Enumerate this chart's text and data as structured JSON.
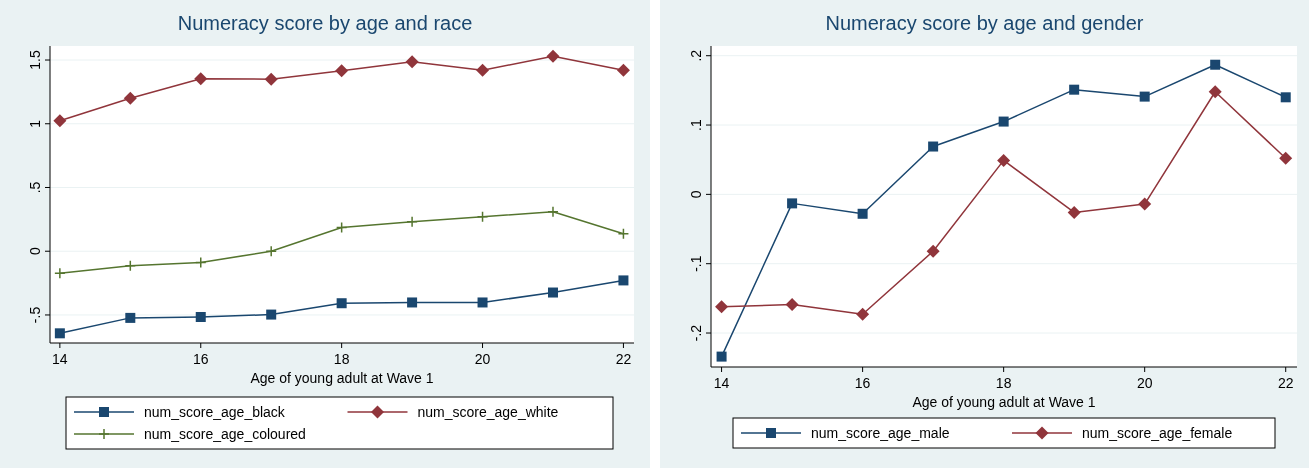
{
  "chart_data": [
    {
      "type": "line",
      "title": "Numeracy score by age and race",
      "xlabel": "Age of young adult at Wave 1",
      "x": [
        14,
        15,
        16,
        17,
        18,
        19,
        20,
        21,
        22
      ],
      "xlim": [
        13.86,
        22.15
      ],
      "xticks": [
        14,
        16,
        18,
        20,
        22
      ],
      "ylim": [
        -0.72,
        1.61
      ],
      "yticks": [
        {
          "value": -0.5,
          "label": "-.5"
        },
        0,
        {
          "value": 0.5,
          "label": ".5"
        },
        1,
        1.5
      ],
      "grid": "y",
      "legend": "bottom",
      "line_style": "solid",
      "series": [
        {
          "name": "num_score_age_black",
          "color": "#1a476f",
          "marker": "square",
          "values": [
            -0.644,
            -0.523,
            -0.516,
            -0.497,
            -0.408,
            -0.402,
            -0.402,
            -0.324,
            -0.229
          ]
        },
        {
          "name": "num_score_age_white",
          "color": "#90353b",
          "marker": "diamond",
          "values": [
            1.023,
            1.2,
            1.353,
            1.35,
            1.415,
            1.487,
            1.42,
            1.53,
            1.42
          ]
        },
        {
          "name": "num_score_age_coloured",
          "color": "#55752f",
          "marker": "cross",
          "values": [
            -0.173,
            -0.114,
            -0.088,
            0.0,
            0.186,
            0.232,
            0.271,
            0.31,
            0.137
          ]
        }
      ]
    },
    {
      "type": "line",
      "title": "Numeracy score by age and gender",
      "xlabel": "Age of young adult at Wave 1",
      "x": [
        14,
        15,
        16,
        17,
        18,
        19,
        20,
        21,
        22
      ],
      "xlim": [
        13.85,
        22.16
      ],
      "xticks": [
        14,
        16,
        18,
        20,
        22
      ],
      "ylim": [
        -0.249,
        0.214
      ],
      "yticks": [
        {
          "value": -0.2,
          "label": "-.2"
        },
        {
          "value": -0.1,
          "label": "-.1"
        },
        0,
        {
          "value": 0.1,
          "label": ".1"
        },
        {
          "value": 0.2,
          "label": ".2"
        }
      ],
      "grid": "y",
      "legend": "bottom",
      "line_style": "solid",
      "series": [
        {
          "name": "num_score_age_male",
          "color": "#1a476f",
          "marker": "square",
          "values": [
            -0.234,
            -0.013,
            -0.028,
            0.069,
            0.105,
            0.151,
            0.141,
            0.187,
            0.14
          ]
        },
        {
          "name": "num_score_age_female",
          "color": "#90353b",
          "marker": "diamond",
          "values": [
            -0.162,
            -0.159,
            -0.173,
            -0.082,
            0.049,
            -0.026,
            -0.014,
            0.148,
            0.052
          ]
        }
      ]
    }
  ]
}
